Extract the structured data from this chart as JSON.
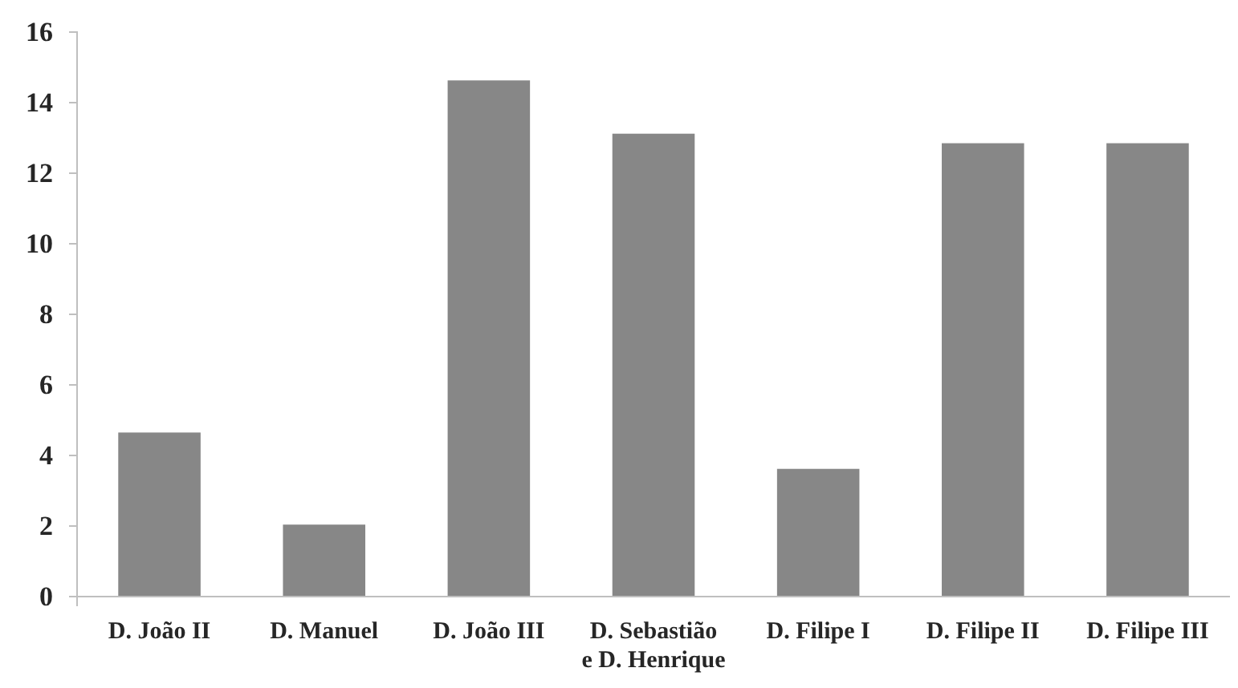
{
  "chart_data": {
    "type": "bar",
    "categories": [
      "D. João II",
      "D. Manuel",
      "D. João III",
      "D. Sebastião\ne D. Henrique",
      "D. Filipe I",
      "D. Filipe II",
      "D. Filipe III"
    ],
    "values": [
      4.65,
      2.04,
      14.63,
      13.12,
      3.62,
      12.85,
      12.85
    ],
    "color": "#878787",
    "ylim": [
      0,
      16
    ],
    "yticks": [
      0,
      2,
      4,
      6,
      8,
      10,
      12,
      14,
      16
    ],
    "grid": false
  }
}
